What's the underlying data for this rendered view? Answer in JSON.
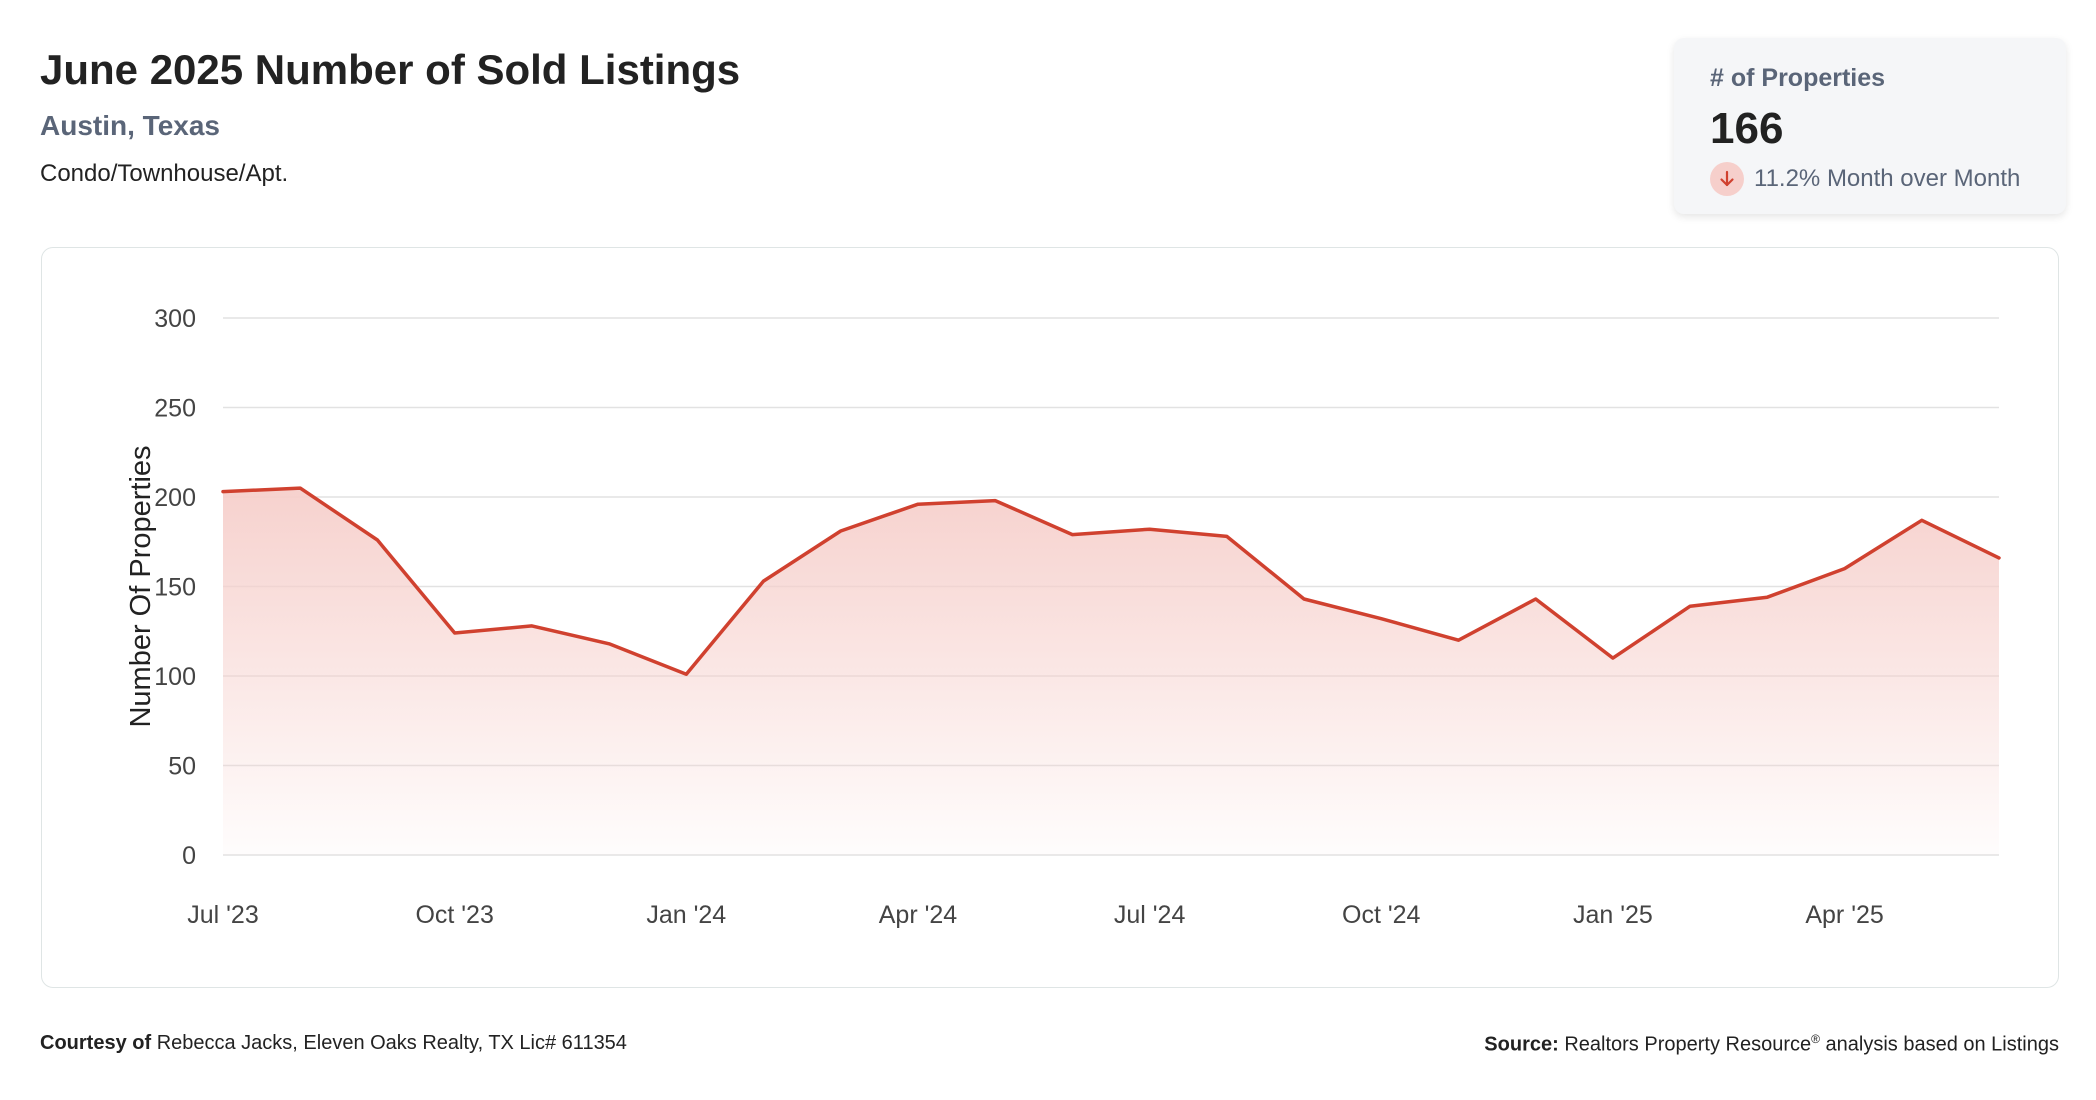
{
  "header": {
    "title": "June 2025 Number of Sold Listings",
    "location": "Austin, Texas",
    "property_type": "Condo/Townhouse/Apt."
  },
  "stat_card": {
    "label": "# of Properties",
    "value": "166",
    "change_text": "11.2% Month over Month",
    "direction": "down",
    "icon": "arrow-down-icon"
  },
  "colors": {
    "line": "#d0412f",
    "fill": "#f6cfcb",
    "grid": "#e2e2e2"
  },
  "chart_data": {
    "type": "area",
    "title": "June 2025 Number of Sold Listings",
    "ylabel": "Number Of Properties",
    "xlabel": "",
    "ylim": [
      0,
      300
    ],
    "yticks": [
      0,
      50,
      100,
      150,
      200,
      250,
      300
    ],
    "grid": true,
    "legend": "none",
    "x": [
      "Jul '23",
      "Aug '23",
      "Sep '23",
      "Oct '23",
      "Nov '23",
      "Dec '23",
      "Jan '24",
      "Feb '24",
      "Mar '24",
      "Apr '24",
      "May '24",
      "Jun '24",
      "Jul '24",
      "Aug '24",
      "Sep '24",
      "Oct '24",
      "Nov '24",
      "Dec '24",
      "Jan '25",
      "Feb '25",
      "Mar '25",
      "Apr '25",
      "May '25",
      "Jun '25"
    ],
    "xtick_labels": [
      "Jul '23",
      "Oct '23",
      "Jan '24",
      "Apr '24",
      "Jul '24",
      "Oct '24",
      "Jan '25",
      "Apr '25"
    ],
    "series": [
      {
        "values": [
          203,
          205,
          176,
          124,
          128,
          118,
          101,
          153,
          181,
          196,
          198,
          179,
          182,
          178,
          143,
          132,
          120,
          143,
          110,
          139,
          144,
          160,
          187,
          166
        ]
      }
    ]
  },
  "footer": {
    "courtesy_label": "Courtesy of",
    "courtesy_text": "Rebecca Jacks, Eleven Oaks Realty, TX Lic# 611354",
    "source_label": "Source:",
    "source_text_1": "Realtors Property Resource",
    "source_reg": "®",
    "source_text_2": " analysis based on Listings"
  }
}
